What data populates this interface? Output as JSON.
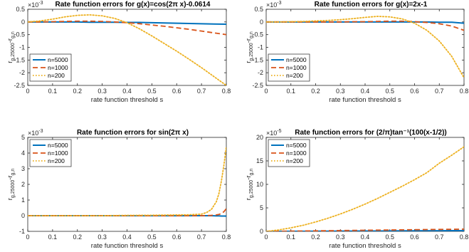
{
  "colors": {
    "n5000": "#0072BD",
    "n1000": "#D95319",
    "n200": "#EDB120",
    "axis": "#262626",
    "grid": "#e6e6e6"
  },
  "chart_data": [
    {
      "type": "line",
      "title": "Rate function errors for g(x)=cos(2π x)-0.0614",
      "xlabel": "rate function threshold s",
      "ylabel": "r_{g,25000} - r_{g,n}",
      "ylabel_main": "r",
      "ylabel_sub1": "g,25000",
      "ylabel_minus": "-r",
      "ylabel_sub2": "g,n",
      "exponent_base": "×10",
      "exponent": "-3",
      "xlim": [
        0,
        0.8
      ],
      "ylim": [
        -2.5,
        0.5
      ],
      "xticks": [
        0,
        0.1,
        0.2,
        0.3,
        0.4,
        0.5,
        0.6,
        0.7,
        0.8
      ],
      "xtick_labels": [
        "0",
        "0.1",
        "0.2",
        "0.3",
        "0.4",
        "0.5",
        "0.6",
        "0.7",
        "0.8"
      ],
      "yticks": [
        -2.5,
        -2,
        -1.5,
        -1,
        -0.5,
        0,
        0.5
      ],
      "ytick_labels": [
        "-2.5",
        "-2",
        "-1.5",
        "-1",
        "-0.5",
        "0",
        "0.5"
      ],
      "legend_position": "bottom-left",
      "x": [
        0,
        0.05,
        0.1,
        0.15,
        0.2,
        0.25,
        0.3,
        0.35,
        0.4,
        0.45,
        0.5,
        0.55,
        0.6,
        0.65,
        0.7,
        0.75,
        0.8
      ],
      "series": [
        {
          "name": "n=5000",
          "style": "solid",
          "values": [
            0,
            0,
            0,
            0,
            0,
            -0.01,
            -0.01,
            -0.01,
            -0.02,
            -0.02,
            -0.03,
            -0.04,
            -0.05,
            -0.06,
            -0.07,
            -0.08,
            -0.09
          ]
        },
        {
          "name": "n=1000",
          "style": "dashed",
          "values": [
            0,
            0,
            0.01,
            0.02,
            0.03,
            0.03,
            0.02,
            0,
            -0.03,
            -0.07,
            -0.12,
            -0.17,
            -0.23,
            -0.29,
            -0.36,
            -0.43,
            -0.5
          ]
        },
        {
          "name": "n=200",
          "style": "dotted",
          "values": [
            0,
            0.04,
            0.11,
            0.2,
            0.26,
            0.28,
            0.24,
            0.14,
            -0.03,
            -0.27,
            -0.55,
            -0.85,
            -1.15,
            -1.47,
            -1.8,
            -2.15,
            -2.5
          ]
        }
      ]
    },
    {
      "type": "line",
      "title": "Rate function errors for g(x)=2x-1",
      "xlabel": "rate function threshold s",
      "ylabel": "r_{g,25000} - r_{g,n}",
      "ylabel_main": "r",
      "ylabel_sub1": "g,25000",
      "ylabel_minus": "-r",
      "ylabel_sub2": "g,n",
      "exponent_base": "×10",
      "exponent": "-3",
      "xlim": [
        0,
        0.8
      ],
      "ylim": [
        -2.5,
        0.5
      ],
      "xticks": [
        0,
        0.1,
        0.2,
        0.3,
        0.4,
        0.5,
        0.6,
        0.7,
        0.8
      ],
      "xtick_labels": [
        "0",
        "0.1",
        "0.2",
        "0.3",
        "0.4",
        "0.5",
        "0.6",
        "0.7",
        "0.8"
      ],
      "yticks": [
        -2.5,
        -2,
        -1.5,
        -1,
        -0.5,
        0,
        0.5
      ],
      "ytick_labels": [
        "-2.5",
        "-2",
        "-1.5",
        "-1",
        "-0.5",
        "0",
        "0.5"
      ],
      "legend_position": "bottom-left",
      "x": [
        0,
        0.05,
        0.1,
        0.15,
        0.2,
        0.25,
        0.3,
        0.35,
        0.4,
        0.45,
        0.5,
        0.55,
        0.6,
        0.65,
        0.7,
        0.75,
        0.8
      ],
      "series": [
        {
          "name": "n=5000",
          "style": "solid",
          "values": [
            0,
            0,
            0,
            0,
            0,
            0,
            0,
            0,
            0,
            0,
            0,
            0,
            0,
            0,
            -0.01,
            -0.01,
            -0.05
          ]
        },
        {
          "name": "n=1000",
          "style": "dashed",
          "values": [
            0,
            0,
            0,
            0,
            0,
            0,
            0,
            0.01,
            0.01,
            0.02,
            0.03,
            0.03,
            0.01,
            -0.02,
            -0.07,
            -0.16,
            -0.33
          ]
        },
        {
          "name": "n=200",
          "style": "dotted",
          "values": [
            0,
            0,
            0.01,
            0.02,
            0.04,
            0.06,
            0.09,
            0.13,
            0.18,
            0.22,
            0.2,
            0.12,
            -0.05,
            -0.33,
            -0.75,
            -1.35,
            -2.2
          ]
        }
      ]
    },
    {
      "type": "line",
      "title": "Rate function errors for sin(2π x)",
      "xlabel": "rate function threshold s",
      "ylabel": "r_{g,25000} - r_{g,n}",
      "ylabel_main": "r",
      "ylabel_sub1": "g,25000",
      "ylabel_minus": "-r",
      "ylabel_sub2": "g,n",
      "exponent_base": "×10",
      "exponent": "-3",
      "xlim": [
        0,
        0.8
      ],
      "ylim": [
        -1,
        5
      ],
      "xticks": [
        0,
        0.1,
        0.2,
        0.3,
        0.4,
        0.5,
        0.6,
        0.7,
        0.8
      ],
      "xtick_labels": [
        "0",
        "0.1",
        "0.2",
        "0.3",
        "0.4",
        "0.5",
        "0.6",
        "0.7",
        "0.8"
      ],
      "yticks": [
        -1,
        0,
        1,
        2,
        3,
        4,
        5
      ],
      "ytick_labels": [
        "-1",
        "0",
        "1",
        "2",
        "3",
        "4",
        "5"
      ],
      "legend_position": "top-left",
      "x": [
        0,
        0.1,
        0.2,
        0.3,
        0.4,
        0.5,
        0.6,
        0.65,
        0.7,
        0.72,
        0.74,
        0.76,
        0.77,
        0.78,
        0.79,
        0.8
      ],
      "series": [
        {
          "name": "n=5000",
          "style": "solid",
          "values": [
            0,
            0,
            0,
            0,
            0,
            0,
            0,
            0,
            0,
            0,
            0,
            -0.01,
            -0.01,
            -0.02,
            -0.02,
            -0.03
          ]
        },
        {
          "name": "n=1000",
          "style": "dashed",
          "values": [
            0,
            0,
            0,
            0,
            0,
            0,
            0,
            0,
            0,
            0.01,
            0.02,
            0.05,
            0.08,
            0.13,
            0.25,
            0.45
          ]
        },
        {
          "name": "n=200",
          "style": "dotted",
          "values": [
            0,
            0,
            0,
            0,
            0.02,
            0.03,
            0.05,
            0.06,
            0.1,
            0.2,
            0.4,
            0.9,
            1.4,
            2.2,
            3.2,
            4.4
          ]
        }
      ]
    },
    {
      "type": "line",
      "title": "Rate function errors for (2/π)tan⁻¹(100(x-1/2))",
      "xlabel": "rate function threshold s",
      "ylabel": "r_{g,25000} - r_{g,n}",
      "ylabel_main": "r",
      "ylabel_sub1": "g,25000",
      "ylabel_minus": "-r",
      "ylabel_sub2": "g,n",
      "exponent_base": "×10",
      "exponent": "-5",
      "xlim": [
        0,
        0.8
      ],
      "ylim": [
        0,
        20
      ],
      "xticks": [
        0,
        0.1,
        0.2,
        0.3,
        0.4,
        0.5,
        0.6,
        0.7,
        0.8
      ],
      "xtick_labels": [
        "0",
        "0.1",
        "0.2",
        "0.3",
        "0.4",
        "0.5",
        "0.6",
        "0.7",
        "0.8"
      ],
      "yticks": [
        0,
        5,
        10,
        15,
        20
      ],
      "ytick_labels": [
        "0",
        "5",
        "10",
        "15",
        "20"
      ],
      "legend_position": "top-left",
      "x": [
        0,
        0.05,
        0.1,
        0.15,
        0.2,
        0.25,
        0.3,
        0.35,
        0.4,
        0.45,
        0.5,
        0.55,
        0.6,
        0.65,
        0.7,
        0.75,
        0.8
      ],
      "series": [
        {
          "name": "n=5000",
          "style": "solid",
          "values": [
            0,
            0,
            0.01,
            0.02,
            0.03,
            0.04,
            0.05,
            0.06,
            0.07,
            0.08,
            0.1,
            0.11,
            0.12,
            0.13,
            0.14,
            0.15,
            0.16
          ]
        },
        {
          "name": "n=1000",
          "style": "dashed",
          "values": [
            0,
            0.02,
            0.05,
            0.08,
            0.11,
            0.14,
            0.17,
            0.2,
            0.23,
            0.26,
            0.29,
            0.32,
            0.35,
            0.38,
            0.41,
            0.44,
            0.47
          ]
        },
        {
          "name": "n=200",
          "style": "dotted",
          "values": [
            0,
            0.3,
            0.75,
            1.3,
            2.0,
            2.8,
            3.7,
            4.7,
            5.8,
            7.0,
            8.3,
            9.6,
            11.0,
            12.5,
            14.5,
            16.2,
            18.0
          ]
        }
      ]
    }
  ]
}
